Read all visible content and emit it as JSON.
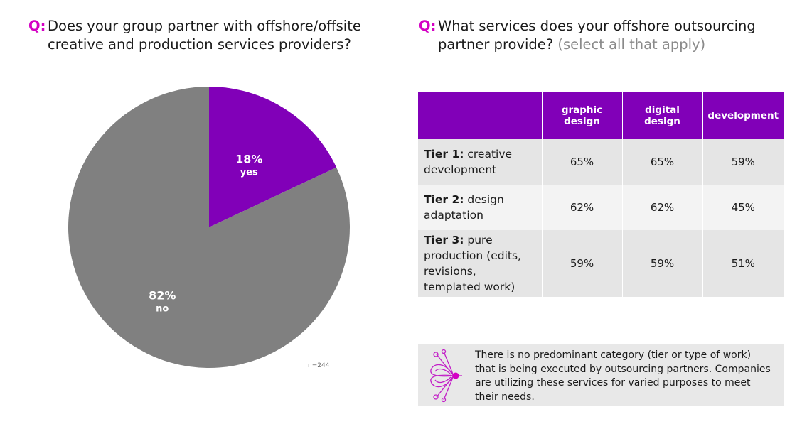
{
  "left_question": {
    "prefix": "Q:",
    "text": "Does your group partner with offshore/offsite creative and production services providers?"
  },
  "right_question": {
    "prefix": "Q:",
    "text": "What services does your offshore outsourcing partner provide?",
    "hint": "(select all that apply)"
  },
  "chart_data": {
    "type": "pie",
    "slices": [
      {
        "label": "yes",
        "value": 18,
        "value_text": "18%",
        "color": "#8100b8"
      },
      {
        "label": "no",
        "value": 82,
        "value_text": "82%",
        "color": "#808080"
      }
    ],
    "sample_note": "n=244"
  },
  "table": {
    "columns": [
      "",
      "graphic design",
      "digital design",
      "development"
    ],
    "rows": [
      {
        "tier_bold": "Tier 1:",
        "tier_rest": "creative development",
        "values": [
          "65%",
          "65%",
          "59%"
        ]
      },
      {
        "tier_bold": "Tier 2:",
        "tier_rest": "design adaptation",
        "values": [
          "62%",
          "62%",
          "45%"
        ]
      },
      {
        "tier_bold": "Tier 3:",
        "tier_rest": "pure production (edits, revisions, templated work)",
        "values": [
          "59%",
          "59%",
          "51%"
        ]
      }
    ],
    "header_color": "#8100b8"
  },
  "note": {
    "icon": "insight-bug-icon",
    "text": "There is no predominant category (tier or type of work) that is being executed by outsourcing partners. Companies are utilizing these services for varied purposes to meet their needs."
  },
  "colors": {
    "accent": "#d400c4",
    "purple": "#8100b8",
    "gray": "#808080"
  }
}
